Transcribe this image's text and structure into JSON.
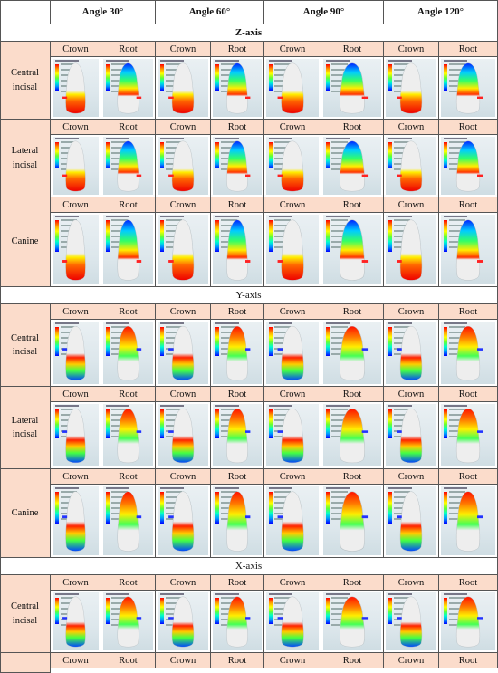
{
  "header": {
    "blank": "",
    "angles": [
      "Angle 30°",
      "Angle 60°",
      "Angle 90°",
      "Angle 120°"
    ]
  },
  "sub_labels": {
    "crown": "Crown",
    "root": "Root"
  },
  "sections": [
    {
      "axis_label": "Z-axis",
      "bold": true,
      "rows": [
        {
          "label": "Central\nincisal"
        },
        {
          "label": "Lateral\nincisal"
        },
        {
          "label": "Canine"
        }
      ]
    },
    {
      "axis_label": "Y-axis",
      "bold": false,
      "rows": [
        {
          "label": "Central\nincisal"
        },
        {
          "label": "Lateral\nincisal"
        },
        {
          "label": "Canine"
        }
      ]
    },
    {
      "axis_label": "X-axis",
      "bold": false,
      "rows": [
        {
          "label": "Central\nincisal"
        },
        {
          "label": ""
        }
      ]
    }
  ],
  "colors": {
    "peach": "#fbdccb",
    "border": "#555555",
    "stress_high": "#ff0000",
    "stress_low": "#0000ff"
  }
}
